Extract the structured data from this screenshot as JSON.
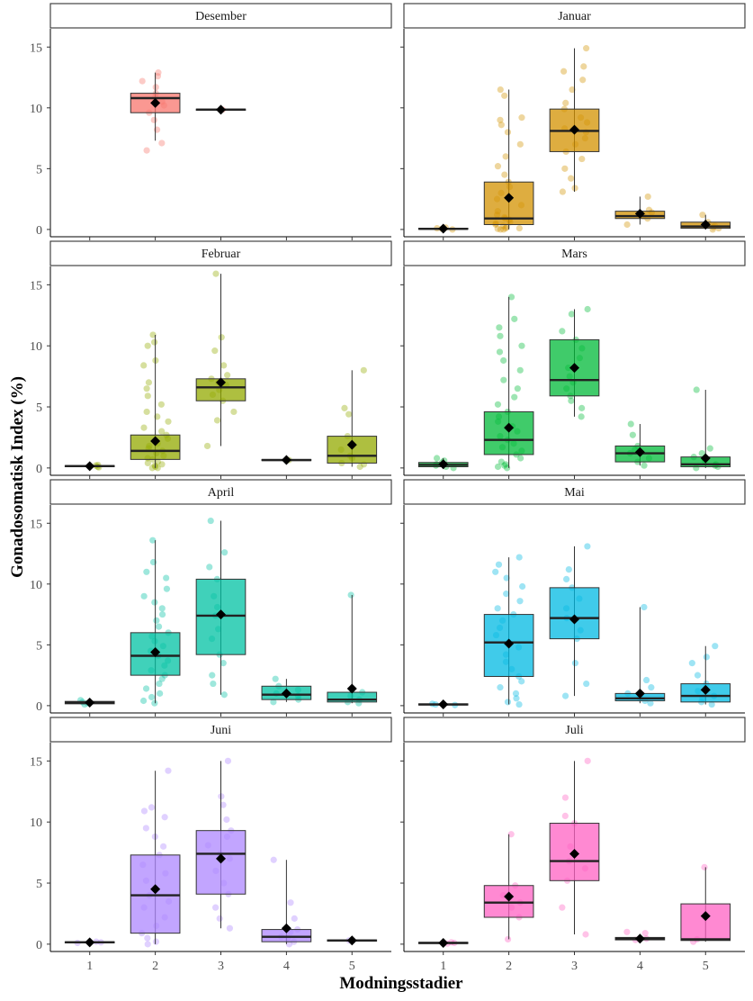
{
  "chart_data": {
    "type": "box",
    "title": "",
    "xlabel": "Modningsstadier",
    "ylabel": "Gonadosomatisk Index (%)",
    "x_ticks": [
      "1",
      "2",
      "3",
      "4",
      "5"
    ],
    "y_ticks": [
      0,
      5,
      10,
      15
    ],
    "ylim": [
      -0.6,
      16.5
    ],
    "grid": false,
    "legend": "none",
    "facets": [
      {
        "title": "Desember",
        "color": "#F8766D",
        "boxes": [
          {
            "x": 2,
            "q1": 9.6,
            "median": 10.8,
            "q3": 11.2,
            "lo": 7.3,
            "hi": 12.9,
            "mean": 10.4,
            "points": [
              6.5,
              7.1,
              8.2,
              9.0,
              9.6,
              10.2,
              10.5,
              10.9,
              11.2,
              11.7,
              12.2,
              12.6,
              12.9
            ]
          },
          {
            "x": 3,
            "q1": 9.8,
            "median": 9.85,
            "q3": 9.9,
            "lo": 9.8,
            "hi": 9.9,
            "mean": 9.85,
            "points": [
              9.85
            ]
          }
        ]
      },
      {
        "title": "Januar",
        "color": "#D39200",
        "boxes": [
          {
            "x": 1,
            "q1": 0.02,
            "median": 0.05,
            "q3": 0.1,
            "lo": 0.0,
            "hi": 0.15,
            "mean": 0.07,
            "points": [
              0.0,
              0.05,
              0.1,
              0.15
            ]
          },
          {
            "x": 2,
            "q1": 0.4,
            "median": 0.9,
            "q3": 3.9,
            "lo": 0.0,
            "hi": 11.5,
            "mean": 2.6,
            "points": [
              0.0,
              0.0,
              0.05,
              0.1,
              0.1,
              0.2,
              0.3,
              0.4,
              0.5,
              0.6,
              0.8,
              0.9,
              1.0,
              1.2,
              1.5,
              2.0,
              2.5,
              3.0,
              3.5,
              3.9,
              4.5,
              5.2,
              6.0,
              7.0,
              8.0,
              8.6,
              9.0,
              9.2,
              11.0,
              11.5
            ]
          },
          {
            "x": 3,
            "q1": 6.4,
            "median": 8.1,
            "q3": 9.9,
            "lo": 3.1,
            "hi": 14.9,
            "mean": 8.2,
            "points": [
              3.1,
              3.4,
              4.2,
              5.0,
              5.8,
              6.4,
              7.0,
              7.5,
              8.0,
              8.3,
              8.8,
              9.2,
              9.9,
              10.4,
              11.5,
              12.3,
              13.0,
              13.4,
              14.9
            ]
          },
          {
            "x": 4,
            "q1": 0.9,
            "median": 1.1,
            "q3": 1.5,
            "lo": 0.4,
            "hi": 2.7,
            "mean": 1.3,
            "points": [
              0.4,
              0.9,
              1.1,
              1.4,
              1.6,
              2.7
            ]
          },
          {
            "x": 5,
            "q1": 0.1,
            "median": 0.25,
            "q3": 0.6,
            "lo": 0.0,
            "hi": 1.2,
            "mean": 0.4,
            "points": [
              0.0,
              0.1,
              0.2,
              0.3,
              0.6,
              1.2
            ]
          }
        ]
      },
      {
        "title": "Februar",
        "color": "#93AA00",
        "boxes": [
          {
            "x": 1,
            "q1": 0.1,
            "median": 0.15,
            "q3": 0.2,
            "lo": 0.05,
            "hi": 0.25,
            "mean": 0.15,
            "points": [
              0.05,
              0.1,
              0.2,
              0.25
            ]
          },
          {
            "x": 2,
            "q1": 0.7,
            "median": 1.4,
            "q3": 2.7,
            "lo": 0.0,
            "hi": 10.9,
            "mean": 2.2,
            "points": [
              0.0,
              0.0,
              0.1,
              0.2,
              0.3,
              0.4,
              0.5,
              0.7,
              0.8,
              1.0,
              1.2,
              1.4,
              1.6,
              1.8,
              2.0,
              2.4,
              2.7,
              3.0,
              3.3,
              3.8,
              4.2,
              4.6,
              5.2,
              5.9,
              6.5,
              7.0,
              8.4,
              8.8,
              10.0,
              10.3,
              10.9
            ]
          },
          {
            "x": 3,
            "q1": 5.5,
            "median": 6.6,
            "q3": 7.3,
            "lo": 1.8,
            "hi": 15.9,
            "mean": 7.0,
            "points": [
              1.8,
              3.9,
              4.6,
              5.5,
              6.0,
              6.4,
              6.8,
              7.0,
              7.3,
              7.6,
              8.4,
              9.6,
              10.7,
              15.9
            ]
          },
          {
            "x": 4,
            "q1": 0.6,
            "median": 0.65,
            "q3": 0.7,
            "lo": 0.6,
            "hi": 0.7,
            "mean": 0.65,
            "points": [
              0.65
            ]
          },
          {
            "x": 5,
            "q1": 0.4,
            "median": 1.0,
            "q3": 2.6,
            "lo": 0.1,
            "hi": 8.0,
            "mean": 1.9,
            "points": [
              0.1,
              0.3,
              0.4,
              0.8,
              1.0,
              1.5,
              2.6,
              4.4,
              4.9,
              8.0
            ]
          }
        ]
      },
      {
        "title": "Mars",
        "color": "#00BA38",
        "boxes": [
          {
            "x": 1,
            "q1": 0.1,
            "median": 0.25,
            "q3": 0.45,
            "lo": 0.0,
            "hi": 0.8,
            "mean": 0.3,
            "points": [
              0.0,
              0.1,
              0.2,
              0.3,
              0.45,
              0.6,
              0.8
            ]
          },
          {
            "x": 2,
            "q1": 1.1,
            "median": 2.3,
            "q3": 4.6,
            "lo": 0.0,
            "hi": 14.0,
            "mean": 3.3,
            "points": [
              0.0,
              0.1,
              0.2,
              0.3,
              0.5,
              0.8,
              1.1,
              1.4,
              1.7,
              2.0,
              2.3,
              2.6,
              3.0,
              3.4,
              3.8,
              4.2,
              4.6,
              5.2,
              5.8,
              6.5,
              7.2,
              8.0,
              8.8,
              9.5,
              10.0,
              10.8,
              11.5,
              12.2,
              14.0
            ]
          },
          {
            "x": 3,
            "q1": 5.9,
            "median": 7.2,
            "q3": 10.5,
            "lo": 4.2,
            "hi": 13.0,
            "mean": 8.2,
            "points": [
              4.2,
              4.9,
              5.5,
              5.9,
              6.5,
              7.0,
              7.5,
              8.2,
              9.0,
              9.8,
              10.5,
              11.2,
              12.6,
              13.0
            ]
          },
          {
            "x": 4,
            "q1": 0.5,
            "median": 1.2,
            "q3": 1.8,
            "lo": 0.2,
            "hi": 3.6,
            "mean": 1.3,
            "points": [
              0.2,
              0.5,
              0.8,
              1.2,
              1.5,
              1.8,
              2.7,
              3.6
            ]
          },
          {
            "x": 5,
            "q1": 0.1,
            "median": 0.3,
            "q3": 0.9,
            "lo": 0.0,
            "hi": 6.4,
            "mean": 0.8,
            "points": [
              0.0,
              0.1,
              0.2,
              0.3,
              0.6,
              0.9,
              1.2,
              1.6,
              6.4
            ]
          }
        ]
      },
      {
        "title": "April",
        "color": "#00C1A3",
        "boxes": [
          {
            "x": 1,
            "q1": 0.15,
            "median": 0.25,
            "q3": 0.35,
            "lo": 0.1,
            "hi": 0.45,
            "mean": 0.25,
            "points": [
              0.1,
              0.2,
              0.3,
              0.45
            ]
          },
          {
            "x": 2,
            "q1": 2.5,
            "median": 4.1,
            "q3": 6.0,
            "lo": 0.2,
            "hi": 13.6,
            "mean": 4.4,
            "points": [
              0.2,
              0.4,
              0.7,
              1.0,
              1.4,
              1.8,
              2.2,
              2.5,
              2.9,
              3.3,
              3.7,
              4.1,
              4.5,
              4.9,
              5.3,
              5.7,
              6.0,
              6.5,
              7.0,
              7.5,
              8.0,
              8.5,
              9.0,
              9.6,
              10.5,
              11.0,
              11.8,
              13.6
            ]
          },
          {
            "x": 3,
            "q1": 4.2,
            "median": 7.4,
            "q3": 10.4,
            "lo": 0.9,
            "hi": 15.2,
            "mean": 7.5,
            "points": [
              0.9,
              1.8,
              2.5,
              3.5,
              4.2,
              5.5,
              6.3,
              7.4,
              8.1,
              9.0,
              10.4,
              11.4,
              12.6,
              15.2
            ]
          },
          {
            "x": 4,
            "q1": 0.5,
            "median": 0.9,
            "q3": 1.6,
            "lo": 0.3,
            "hi": 2.2,
            "mean": 1.0,
            "points": [
              0.3,
              0.5,
              0.8,
              1.0,
              1.3,
              1.6,
              2.2
            ]
          },
          {
            "x": 5,
            "q1": 0.3,
            "median": 0.5,
            "q3": 1.1,
            "lo": 0.2,
            "hi": 9.1,
            "mean": 1.4,
            "points": [
              0.2,
              0.3,
              0.5,
              0.8,
              1.1,
              9.1
            ]
          }
        ]
      },
      {
        "title": "Mai",
        "color": "#00B9E3",
        "boxes": [
          {
            "x": 1,
            "q1": 0.05,
            "median": 0.1,
            "q3": 0.15,
            "lo": 0.0,
            "hi": 0.2,
            "mean": 0.1,
            "points": [
              0.05,
              0.1,
              0.15
            ]
          },
          {
            "x": 2,
            "q1": 2.4,
            "median": 5.2,
            "q3": 7.5,
            "lo": 0.1,
            "hi": 12.2,
            "mean": 5.1,
            "points": [
              0.1,
              0.3,
              0.6,
              1.0,
              1.5,
              2.0,
              2.4,
              3.0,
              3.6,
              4.2,
              4.8,
              5.2,
              5.8,
              6.4,
              7.0,
              7.5,
              8.0,
              8.6,
              9.2,
              9.8,
              10.5,
              11.0,
              11.6,
              12.2
            ]
          },
          {
            "x": 3,
            "q1": 5.5,
            "median": 7.2,
            "q3": 9.7,
            "lo": 0.8,
            "hi": 13.1,
            "mean": 7.1,
            "points": [
              0.8,
              1.8,
              3.5,
              5.5,
              6.2,
              7.2,
              8.0,
              8.8,
              9.7,
              10.4,
              11.2,
              13.1
            ]
          },
          {
            "x": 4,
            "q1": 0.4,
            "median": 0.6,
            "q3": 1.0,
            "lo": 0.2,
            "hi": 8.1,
            "mean": 1.0,
            "points": [
              0.2,
              0.4,
              0.6,
              0.8,
              1.0,
              1.5,
              2.1,
              8.1
            ]
          },
          {
            "x": 5,
            "q1": 0.3,
            "median": 0.8,
            "q3": 1.8,
            "lo": 0.1,
            "hi": 4.9,
            "mean": 1.3,
            "points": [
              0.1,
              0.3,
              0.6,
              0.8,
              1.2,
              1.8,
              2.5,
              3.5,
              4.0,
              4.9
            ]
          }
        ]
      },
      {
        "title": "Juni",
        "color": "#AE87FF",
        "boxes": [
          {
            "x": 1,
            "q1": 0.1,
            "median": 0.15,
            "q3": 0.2,
            "lo": 0.05,
            "hi": 0.25,
            "mean": 0.15,
            "points": [
              0.1,
              0.15,
              0.2
            ]
          },
          {
            "x": 2,
            "q1": 0.9,
            "median": 4.0,
            "q3": 7.3,
            "lo": 0.0,
            "hi": 14.2,
            "mean": 4.5,
            "points": [
              0.0,
              0.2,
              0.5,
              0.9,
              1.5,
              2.2,
              3.0,
              3.5,
              4.0,
              4.6,
              5.2,
              5.8,
              6.5,
              7.3,
              8.0,
              8.8,
              9.5,
              10.4,
              10.9,
              11.2,
              14.2
            ]
          },
          {
            "x": 3,
            "q1": 4.1,
            "median": 7.4,
            "q3": 9.3,
            "lo": 1.3,
            "hi": 15.0,
            "mean": 7.0,
            "points": [
              1.3,
              2.1,
              3.0,
              4.1,
              5.0,
              6.0,
              7.0,
              7.4,
              8.1,
              8.8,
              9.3,
              10.2,
              11.4,
              12.1,
              15.0
            ]
          },
          {
            "x": 4,
            "q1": 0.2,
            "median": 0.6,
            "q3": 1.2,
            "lo": 0.0,
            "hi": 6.9,
            "mean": 1.3,
            "points": [
              0.0,
              0.2,
              0.5,
              0.6,
              1.0,
              1.2,
              2.1,
              3.4,
              6.9
            ]
          },
          {
            "x": 5,
            "q1": 0.25,
            "median": 0.3,
            "q3": 0.35,
            "lo": 0.2,
            "hi": 0.4,
            "mean": 0.3,
            "points": [
              0.3
            ]
          }
        ]
      },
      {
        "title": "Juli",
        "color": "#FF61C3",
        "boxes": [
          {
            "x": 1,
            "q1": 0.05,
            "median": 0.1,
            "q3": 0.15,
            "lo": 0.0,
            "hi": 0.2,
            "mean": 0.1,
            "points": [
              0.05,
              0.1,
              0.15
            ]
          },
          {
            "x": 2,
            "q1": 2.2,
            "median": 3.4,
            "q3": 4.8,
            "lo": 0.4,
            "hi": 9.0,
            "mean": 3.9,
            "points": [
              0.4,
              2.2,
              3.0,
              3.4,
              4.0,
              4.8,
              9.0
            ]
          },
          {
            "x": 3,
            "q1": 5.2,
            "median": 6.8,
            "q3": 9.9,
            "lo": 0.8,
            "hi": 15.0,
            "mean": 7.4,
            "points": [
              0.8,
              3.0,
              5.2,
              6.2,
              6.8,
              8.0,
              9.9,
              10.5,
              12.0,
              15.0
            ]
          },
          {
            "x": 4,
            "q1": 0.35,
            "median": 0.45,
            "q3": 0.55,
            "lo": 0.3,
            "hi": 0.6,
            "mean": 0.45,
            "points": [
              0.35,
              0.45,
              0.9,
              1.0
            ]
          },
          {
            "x": 5,
            "q1": 0.3,
            "median": 0.4,
            "q3": 3.3,
            "lo": 0.2,
            "hi": 6.3,
            "mean": 2.3,
            "points": [
              0.2,
              0.4,
              6.3
            ]
          }
        ]
      }
    ]
  }
}
